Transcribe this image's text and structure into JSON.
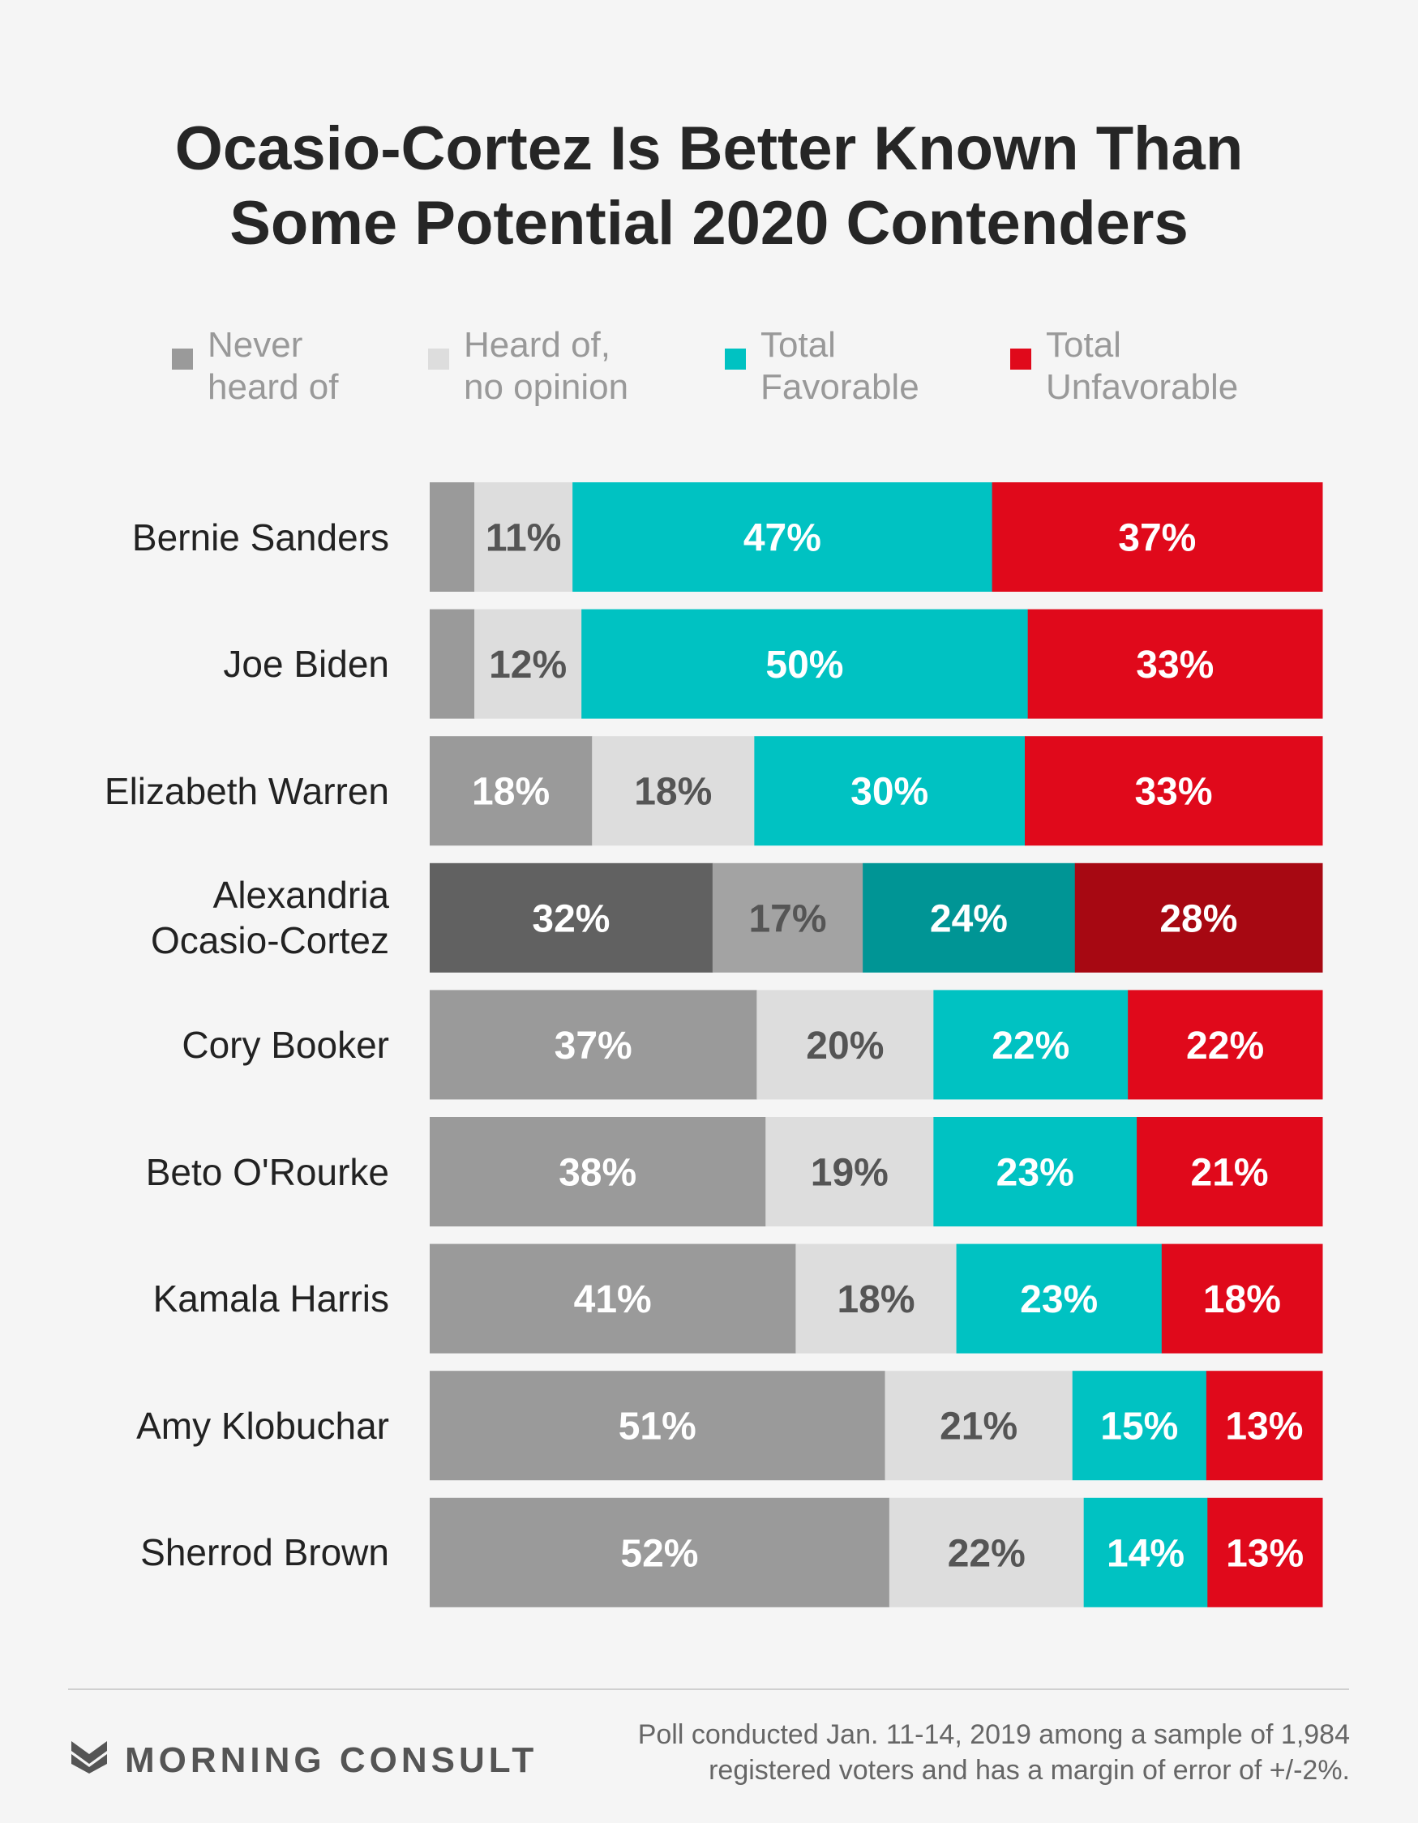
{
  "title_line1": "Ocasio-Cortez Is Better Known Than",
  "title_line2": "Some Potential 2020 Contenders",
  "legend": [
    {
      "line1": "Never",
      "line2": "heard of",
      "color": "#9a9a9a"
    },
    {
      "line1": "Heard of,",
      "line2": "no opinion",
      "color": "#dddddd"
    },
    {
      "line1": "Total",
      "line2": "Favorable",
      "color": "#00c2c2"
    },
    {
      "line1": "Total",
      "line2": "Unfavorable",
      "color": "#e0091b"
    }
  ],
  "chart_data": {
    "type": "bar",
    "orientation": "horizontal",
    "stacked": true,
    "categories": [
      "Bernie Sanders",
      "Joe Biden",
      "Elizabeth Warren",
      "Alexandria Ocasio-Cortez",
      "Cory Booker",
      "Beto O'Rourke",
      "Kamala Harris",
      "Amy Klobuchar",
      "Sherrod Brown"
    ],
    "category_lines": [
      [
        "Bernie Sanders"
      ],
      [
        "Joe Biden"
      ],
      [
        "Elizabeth Warren"
      ],
      [
        "Alexandria",
        "Ocasio-Cortez"
      ],
      [
        "Cory Booker"
      ],
      [
        "Beto O'Rourke"
      ],
      [
        "Kamala Harris"
      ],
      [
        "Amy Klobuchar"
      ],
      [
        "Sherrod Brown"
      ]
    ],
    "series": [
      {
        "name": "Never heard of",
        "values": [
          5,
          5,
          18,
          32,
          37,
          38,
          41,
          51,
          52
        ],
        "labels": [
          "",
          "",
          "18%",
          "32%",
          "37%",
          "38%",
          "41%",
          "51%",
          "52%"
        ]
      },
      {
        "name": "Heard of, no opinion",
        "values": [
          11,
          12,
          18,
          17,
          20,
          19,
          18,
          21,
          22
        ],
        "labels": [
          "11%",
          "12%",
          "18%",
          "17%",
          "20%",
          "19%",
          "18%",
          "21%",
          "22%"
        ]
      },
      {
        "name": "Total Favorable",
        "values": [
          47,
          50,
          30,
          24,
          22,
          23,
          23,
          15,
          14
        ],
        "labels": [
          "47%",
          "50%",
          "30%",
          "24%",
          "22%",
          "23%",
          "23%",
          "15%",
          "14%"
        ]
      },
      {
        "name": "Total Unfavorable",
        "values": [
          37,
          33,
          33,
          28,
          22,
          21,
          18,
          13,
          13
        ],
        "labels": [
          "37%",
          "33%",
          "33%",
          "28%",
          "22%",
          "21%",
          "18%",
          "13%",
          "13%"
        ]
      }
    ],
    "colors": [
      "#9a9a9a",
      "#dddddd",
      "#00c2c2",
      "#e0091b"
    ],
    "highlight_index": 3,
    "highlight_colors": [
      "#616161",
      "#a3a3a3",
      "#009595",
      "#a70812"
    ],
    "label_colors": [
      "#ffffff",
      "#555555",
      "#ffffff",
      "#ffffff"
    ],
    "highlight_label_colors": [
      "#ffffff",
      "#555555",
      "#ffffff",
      "#ffffff"
    ]
  },
  "footer": {
    "brand": "MORNING CONSULT",
    "logo_icon": "morning-consult-chevron-icon",
    "note_line1": "Poll conducted Jan. 11-14, 2019 among a sample of 1,984",
    "note_line2": "registered voters and has a margin of error of +/-2%."
  }
}
